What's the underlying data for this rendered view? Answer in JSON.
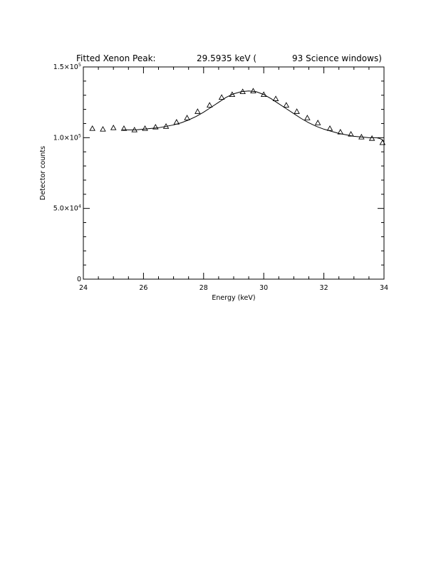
{
  "chart_data": {
    "type": "scatter",
    "title": {
      "prefix": "Fitted Xenon Peak:",
      "value": "29.5935 keV (",
      "suffix": "93 Science windows)"
    },
    "xlabel": "Energy (keV)",
    "ylabel": "Detector counts",
    "xlim": [
      24,
      34
    ],
    "ylim": [
      0,
      150000
    ],
    "x_ticks": [
      {
        "value": 24,
        "label": "24"
      },
      {
        "value": 26,
        "label": "26"
      },
      {
        "value": 28,
        "label": "28"
      },
      {
        "value": 30,
        "label": "30"
      },
      {
        "value": 32,
        "label": "32"
      },
      {
        "value": 34,
        "label": "34"
      }
    ],
    "x_minor_step": 0.5,
    "y_ticks": [
      {
        "value": 0,
        "mantissa": "0",
        "exponent": ""
      },
      {
        "value": 50000,
        "mantissa": "5.0×10",
        "exponent": "4"
      },
      {
        "value": 100000,
        "mantissa": "1.0×10",
        "exponent": "5"
      },
      {
        "value": 150000,
        "mantissa": "1.5×10",
        "exponent": "5"
      }
    ],
    "y_minor_step": 10000,
    "grid": false,
    "series": [
      {
        "marker": "triangle",
        "x": [
          24.3,
          24.65,
          25.0,
          25.35,
          25.7,
          26.05,
          26.4,
          26.75,
          27.1,
          27.45,
          27.8,
          28.2,
          28.6,
          28.95,
          29.3,
          29.65,
          30.0,
          30.4,
          30.75,
          31.1,
          31.45,
          31.8,
          32.2,
          32.55,
          32.9,
          33.25,
          33.6,
          33.95
        ],
        "y": [
          106500,
          106000,
          107000,
          106500,
          105500,
          106500,
          107500,
          108000,
          111000,
          114000,
          118500,
          123000,
          128500,
          130500,
          132500,
          133000,
          130500,
          127500,
          123000,
          118500,
          114000,
          110500,
          106500,
          104000,
          102500,
          100500,
          99500,
          96500
        ]
      },
      {
        "marker": "line",
        "x": [
          25.3,
          25.5,
          25.75,
          26.0,
          26.25,
          26.5,
          26.75,
          27.0,
          27.25,
          27.5,
          27.75,
          28.0,
          28.25,
          28.5,
          28.75,
          29.0,
          29.25,
          29.5,
          29.75,
          30.0,
          30.25,
          30.5,
          30.75,
          31.0,
          31.25,
          31.5,
          31.75,
          32.0,
          32.25,
          32.5,
          32.75,
          33.0,
          33.25,
          33.5,
          33.75,
          33.85,
          33.95,
          34.0
        ],
        "y": [
          105500,
          105500,
          105500,
          106000,
          106500,
          107000,
          108000,
          109000,
          110500,
          112500,
          115000,
          118000,
          121500,
          125000,
          128500,
          131000,
          132500,
          133000,
          132500,
          130500,
          127500,
          124000,
          120500,
          117000,
          113500,
          110500,
          108000,
          106000,
          104500,
          103000,
          102000,
          101000,
          100500,
          100000,
          100000,
          99500,
          98500,
          97000
        ]
      }
    ]
  }
}
